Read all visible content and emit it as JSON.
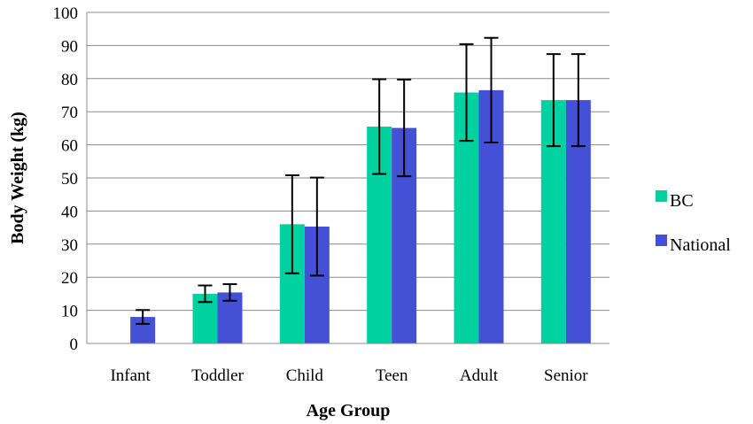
{
  "chart_data": {
    "type": "bar",
    "title": "",
    "xlabel": "Age Group",
    "ylabel": "Body Weight (kg)",
    "ylim": [
      0,
      100
    ],
    "yticks": [
      0,
      10,
      20,
      30,
      40,
      50,
      60,
      70,
      80,
      90,
      100
    ],
    "grid": true,
    "legend_position": "right",
    "categories": [
      "Infant",
      "Toddler",
      "Child",
      "Teen",
      "Adult",
      "Senior"
    ],
    "series": [
      {
        "name": "BC",
        "color": "#00d1a0",
        "values": [
          null,
          15.0,
          36.0,
          65.5,
          75.8,
          73.5
        ],
        "error": [
          null,
          2.5,
          14.8,
          14.3,
          14.6,
          13.9
        ]
      },
      {
        "name": "National",
        "color": "#4450d6",
        "values": [
          8.0,
          15.4,
          35.3,
          65.1,
          76.5,
          73.5
        ],
        "error": [
          2.1,
          2.5,
          14.8,
          14.6,
          15.8,
          13.9
        ]
      }
    ]
  }
}
